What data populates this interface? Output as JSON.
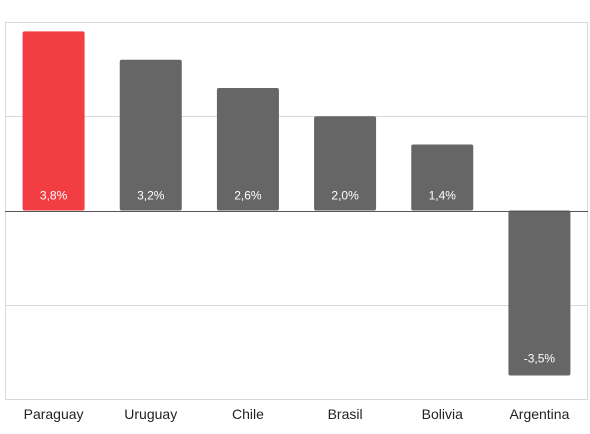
{
  "chart_data": {
    "type": "bar",
    "title": "",
    "xlabel": "",
    "ylabel": "",
    "categories": [
      "Paraguay",
      "Uruguay",
      "Chile",
      "Brasil",
      "Bolivia",
      "Argentina"
    ],
    "values": [
      3.8,
      3.2,
      2.6,
      2.0,
      1.4,
      -3.5
    ],
    "data_labels": [
      "3,8%",
      "3,2%",
      "2,6%",
      "2,0%",
      "1,4%",
      "-3,5%"
    ],
    "ylim": [
      -4,
      4
    ],
    "gridlines": [
      -4,
      -2,
      0,
      2,
      4
    ],
    "grid": true,
    "legend": "none",
    "colors": {
      "highlight": "#f23d42",
      "default": "#666666"
    },
    "highlight_index": 0
  }
}
